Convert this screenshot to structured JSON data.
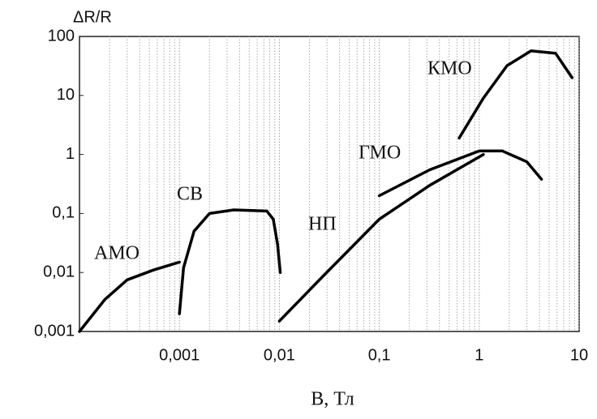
{
  "chart_data": {
    "type": "line",
    "y_label": "ΔR/R",
    "x_label": "B, Тл",
    "log_x": true,
    "log_y": true,
    "grid": true,
    "color": "#000000",
    "xlim": [
      0.0001,
      10
    ],
    "ylim": [
      0.001,
      100
    ],
    "xticks": [
      {
        "value": 0.001,
        "label": "0,001"
      },
      {
        "value": 0.01,
        "label": "0,01"
      },
      {
        "value": 0.1,
        "label": "0,1"
      },
      1,
      10
    ],
    "yticks": [
      {
        "value": 0.001,
        "label": "0,001"
      },
      {
        "value": 0.01,
        "label": "0,01"
      },
      {
        "value": 0.1,
        "label": "0,1"
      },
      1,
      10,
      100
    ],
    "series": [
      {
        "name": "АМО",
        "x": [
          0.0001,
          0.00018,
          0.0003,
          0.00055,
          0.001
        ],
        "values": [
          0.001,
          0.0035,
          0.0075,
          0.011,
          0.015
        ]
      },
      {
        "name": "СВ",
        "x": [
          0.001,
          0.0011,
          0.0014,
          0.002,
          0.0035,
          0.0075,
          0.0087,
          0.0096,
          0.0102
        ],
        "values": [
          0.002,
          0.012,
          0.05,
          0.1,
          0.115,
          0.11,
          0.08,
          0.03,
          0.01
        ]
      },
      {
        "name": "НП",
        "x": [
          0.01,
          0.028,
          0.1,
          0.32,
          1.1
        ],
        "values": [
          0.0015,
          0.009,
          0.08,
          0.3,
          1
        ]
      },
      {
        "name": "ГМО",
        "x": [
          0.1,
          0.32,
          1,
          1.7,
          3,
          4.2
        ],
        "values": [
          0.2,
          0.55,
          1.15,
          1.15,
          0.75,
          0.38
        ]
      },
      {
        "name": "КМО",
        "x": [
          0.63,
          1.1,
          1.9,
          3.3,
          5.8,
          8.5
        ],
        "values": [
          1.9,
          9,
          32,
          57,
          52,
          20
        ]
      }
    ]
  }
}
